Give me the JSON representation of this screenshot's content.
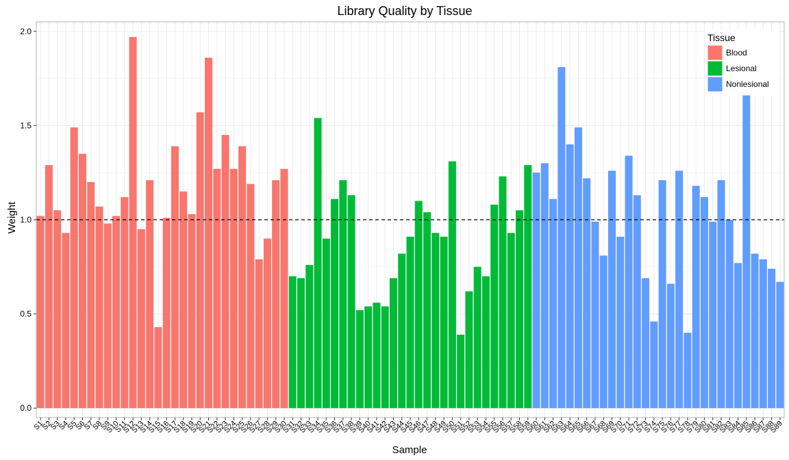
{
  "chart_data": {
    "type": "bar",
    "title": "Library Quality by Tissue",
    "xlabel": "Sample",
    "ylabel": "Weight",
    "ylim": [
      -0.05,
      2.05
    ],
    "yticks": [
      0.0,
      0.5,
      1.0,
      1.5,
      2.0
    ],
    "ytick_labels": [
      "0.0",
      "0.5",
      "1.0",
      "1.5",
      "2.0"
    ],
    "reference_line": {
      "y": 1.0,
      "style": "dashed",
      "color": "#000000"
    },
    "grid": true,
    "legend": {
      "title": "Tissue",
      "position": "top-right",
      "entries": [
        {
          "name": "Blood",
          "color": "#F8766D"
        },
        {
          "name": "Lesional",
          "color": "#00BA38"
        },
        {
          "name": "Nonlesional",
          "color": "#619CFF"
        }
      ]
    },
    "categories": [
      "S1",
      "S2",
      "S3",
      "S4",
      "S5",
      "S6",
      "S7",
      "S8",
      "S9",
      "S10",
      "S11",
      "S12",
      "S13",
      "S14",
      "S15",
      "S16",
      "S17",
      "S18",
      "S19",
      "S20",
      "S21",
      "S22",
      "S23",
      "S24",
      "S25",
      "S26",
      "S27",
      "S28",
      "S29",
      "S30",
      "S31",
      "S32",
      "S33",
      "S34",
      "S35",
      "S36",
      "S37",
      "S38",
      "S39",
      "S40",
      "S41",
      "S42",
      "S43",
      "S44",
      "S45",
      "S46",
      "S47",
      "S48",
      "S49",
      "S50",
      "S51",
      "S52",
      "S53",
      "S54",
      "S55",
      "S56",
      "S57",
      "S58",
      "S59",
      "S60",
      "S61",
      "S62",
      "S63",
      "S64",
      "S65",
      "S66",
      "S67",
      "S68",
      "S69",
      "S70",
      "S71",
      "S72",
      "S73",
      "S74",
      "S75",
      "S76",
      "S77",
      "S78",
      "S79",
      "S80",
      "S81",
      "S82",
      "S83",
      "S84",
      "S85",
      "S86",
      "S87",
      "S88",
      "S89"
    ],
    "values": [
      1.02,
      1.29,
      1.05,
      0.93,
      1.49,
      1.35,
      1.2,
      1.07,
      0.98,
      1.02,
      1.12,
      1.97,
      0.95,
      1.21,
      0.43,
      1.01,
      1.39,
      1.15,
      1.03,
      1.57,
      1.86,
      1.27,
      1.45,
      1.27,
      1.39,
      1.19,
      0.79,
      0.9,
      1.21,
      1.27,
      0.7,
      0.69,
      0.76,
      1.54,
      0.9,
      1.11,
      1.21,
      1.13,
      0.52,
      0.54,
      0.56,
      0.54,
      0.69,
      0.82,
      0.91,
      1.1,
      1.04,
      0.93,
      0.91,
      1.31,
      0.39,
      0.62,
      0.75,
      0.7,
      1.08,
      1.23,
      0.93,
      1.05,
      1.29,
      1.25,
      1.3,
      1.11,
      1.81,
      1.4,
      1.49,
      1.22,
      0.99,
      0.81,
      1.26,
      0.91,
      1.34,
      1.13,
      0.69,
      0.46,
      1.21,
      0.66,
      1.26,
      0.4,
      1.18,
      1.12,
      0.99,
      1.21,
      1.0,
      0.77,
      1.66,
      0.82,
      0.79,
      0.74,
      0.67
    ],
    "groups": [
      "Blood",
      "Blood",
      "Blood",
      "Blood",
      "Blood",
      "Blood",
      "Blood",
      "Blood",
      "Blood",
      "Blood",
      "Blood",
      "Blood",
      "Blood",
      "Blood",
      "Blood",
      "Blood",
      "Blood",
      "Blood",
      "Blood",
      "Blood",
      "Blood",
      "Blood",
      "Blood",
      "Blood",
      "Blood",
      "Blood",
      "Blood",
      "Blood",
      "Blood",
      "Blood",
      "Lesional",
      "Lesional",
      "Lesional",
      "Lesional",
      "Lesional",
      "Lesional",
      "Lesional",
      "Lesional",
      "Lesional",
      "Lesional",
      "Lesional",
      "Lesional",
      "Lesional",
      "Lesional",
      "Lesional",
      "Lesional",
      "Lesional",
      "Lesional",
      "Lesional",
      "Lesional",
      "Lesional",
      "Lesional",
      "Lesional",
      "Lesional",
      "Lesional",
      "Lesional",
      "Lesional",
      "Lesional",
      "Lesional",
      "Nonlesional",
      "Nonlesional",
      "Nonlesional",
      "Nonlesional",
      "Nonlesional",
      "Nonlesional",
      "Nonlesional",
      "Nonlesional",
      "Nonlesional",
      "Nonlesional",
      "Nonlesional",
      "Nonlesional",
      "Nonlesional",
      "Nonlesional",
      "Nonlesional",
      "Nonlesional",
      "Nonlesional",
      "Nonlesional",
      "Nonlesional",
      "Nonlesional",
      "Nonlesional",
      "Nonlesional",
      "Nonlesional",
      "Nonlesional",
      "Nonlesional",
      "Nonlesional",
      "Nonlesional",
      "Nonlesional",
      "Nonlesional",
      "Nonlesional"
    ]
  }
}
